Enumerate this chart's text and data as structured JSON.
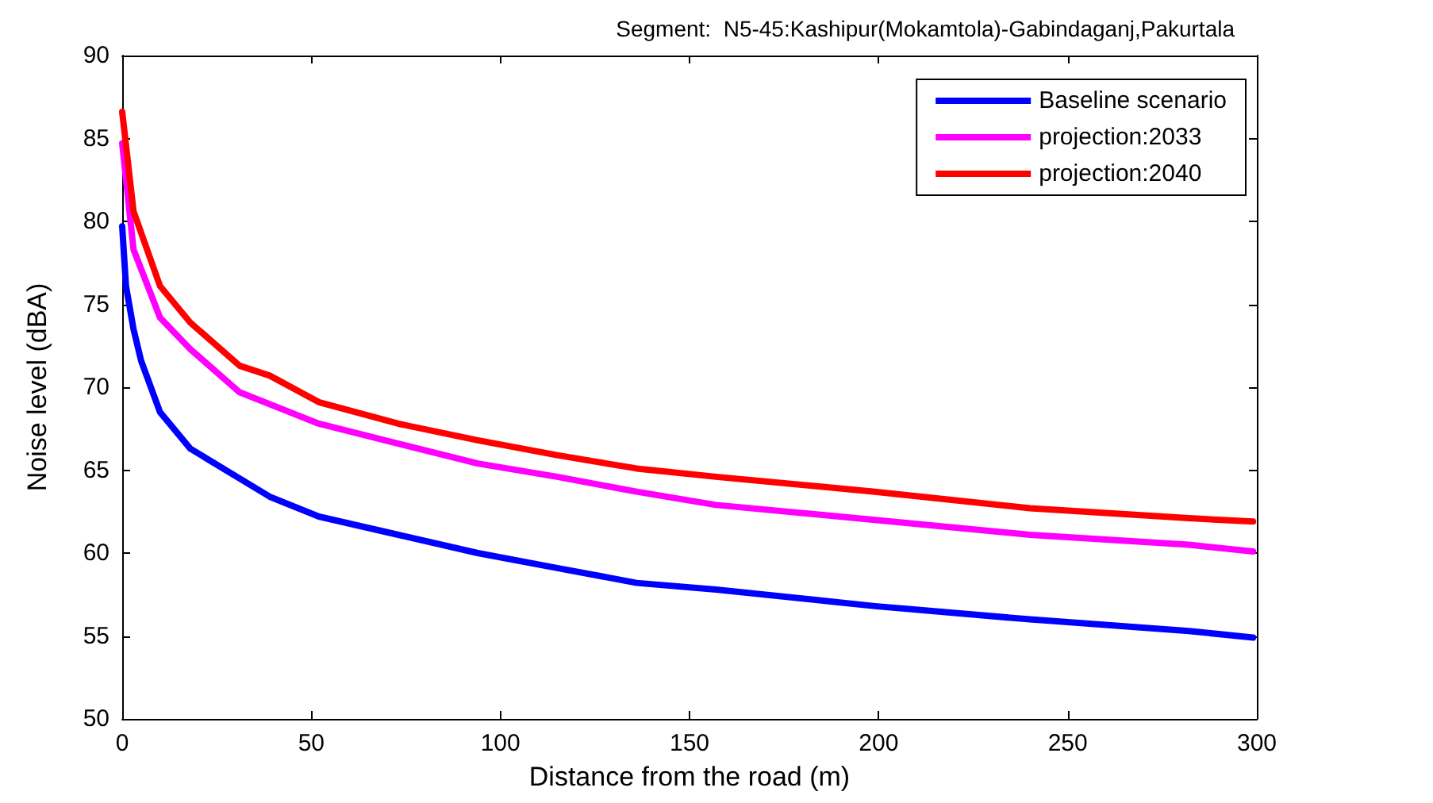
{
  "chart_data": {
    "type": "line",
    "title": "Segment:  N5-45:Kashipur(Mokamtola)-Gabindaganj,Pakurtala",
    "xlabel": "Distance from the road (m)",
    "ylabel": "Noise level (dBA)",
    "xlim": [
      0,
      300
    ],
    "xticks": [
      0,
      50,
      100,
      150,
      200,
      250,
      300
    ],
    "ylim": [
      50,
      90
    ],
    "yticks": [
      50,
      55,
      60,
      65,
      70,
      75,
      80,
      85,
      90
    ],
    "grid": false,
    "legend": "top right",
    "marker": "none",
    "line_style": "solid",
    "series": [
      {
        "name": "Baseline scenario",
        "color": "#0000ff",
        "x": [
          0,
          1,
          3,
          5,
          10,
          18,
          31,
          39,
          52,
          73,
          94,
          115,
          136,
          157,
          199,
          240,
          282,
          299
        ],
        "values": [
          79.7,
          76.1,
          73.5,
          71.6,
          68.5,
          66.3,
          64.5,
          63.4,
          62.2,
          61.1,
          60.0,
          59.1,
          58.2,
          57.8,
          56.8,
          56.0,
          55.3,
          54.9
        ]
      },
      {
        "name": "projection:2033",
        "color": "#ff00ff",
        "x": [
          0,
          3,
          10,
          18,
          31,
          52,
          73,
          94,
          115,
          136,
          157,
          199,
          240,
          282,
          299
        ],
        "values": [
          84.7,
          78.3,
          74.2,
          72.3,
          69.7,
          67.8,
          66.6,
          65.4,
          64.6,
          63.7,
          62.9,
          62.0,
          61.1,
          60.5,
          60.1
        ]
      },
      {
        "name": "projection:2040",
        "color": "#ff0000",
        "x": [
          0,
          3,
          10,
          18,
          31,
          39,
          52,
          73,
          94,
          115,
          136,
          157,
          199,
          240,
          282,
          299
        ],
        "values": [
          86.6,
          80.6,
          76.1,
          73.9,
          71.3,
          70.7,
          69.1,
          67.8,
          66.8,
          65.9,
          65.1,
          64.6,
          63.7,
          62.7,
          62.1,
          61.9
        ]
      }
    ]
  }
}
